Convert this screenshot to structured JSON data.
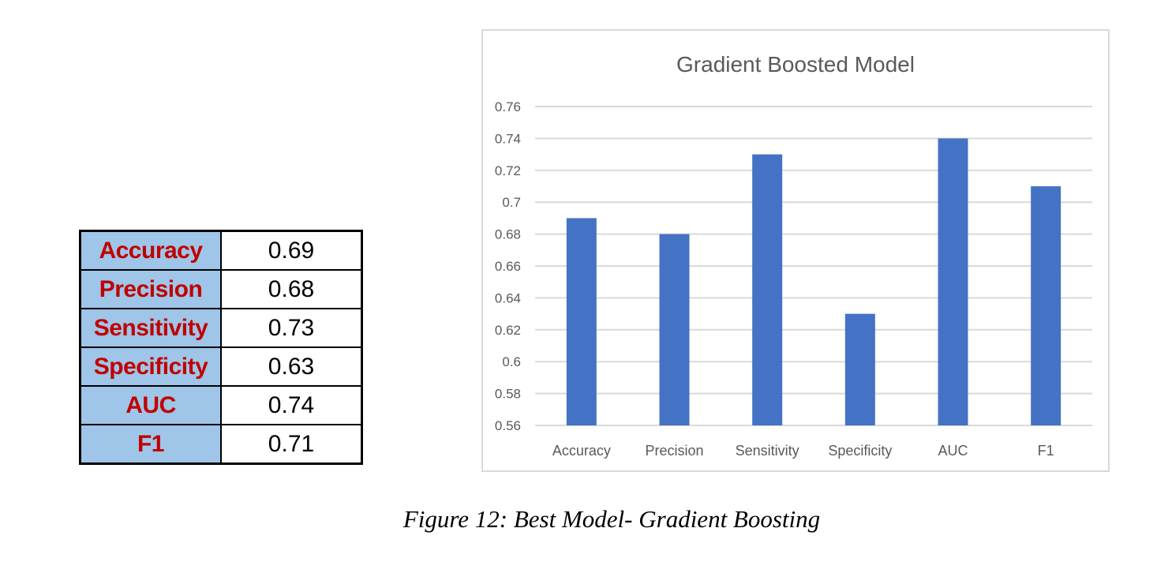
{
  "table": {
    "rows": [
      {
        "metric": "Accuracy",
        "value": "0.69"
      },
      {
        "metric": "Precision",
        "value": "0.68"
      },
      {
        "metric": "Sensitivity",
        "value": "0.73"
      },
      {
        "metric": "Specificity",
        "value": "0.63"
      },
      {
        "metric": "AUC",
        "value": "0.74"
      },
      {
        "metric": "F1",
        "value": "0.71"
      }
    ]
  },
  "caption": "Figure 12: Best Model- Gradient Boosting",
  "chart_data": {
    "type": "bar",
    "title": "Gradient Boosted Model",
    "categories": [
      "Accuracy",
      "Precision",
      "Sensitivity",
      "Specificity",
      "AUC",
      "F1"
    ],
    "values": [
      0.69,
      0.68,
      0.73,
      0.63,
      0.74,
      0.71
    ],
    "ylim": [
      0.56,
      0.76
    ],
    "yticks": [
      "0.56",
      "0.58",
      "0.6",
      "0.62",
      "0.64",
      "0.66",
      "0.68",
      "0.7",
      "0.72",
      "0.74",
      "0.76"
    ],
    "xlabel": "",
    "ylabel": "",
    "grid": true,
    "bar_color": "#4472c4",
    "grid_color": "#d9d9d9"
  }
}
